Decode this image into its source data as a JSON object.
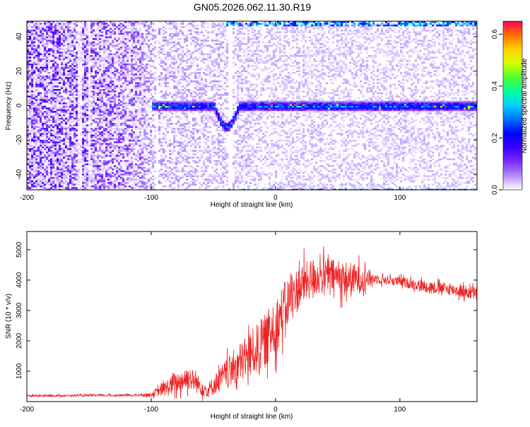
{
  "title": "GN05.2026.062.11.30.R19",
  "chart_data": [
    {
      "type": "heatmap",
      "name": "spectrogram",
      "xlabel": "Height of straight line (km)",
      "ylabel": "Frequency (Hz)",
      "xlim": [
        -200,
        162
      ],
      "ylim": [
        -49,
        49
      ],
      "xticks": [
        -200,
        -100,
        0,
        100
      ],
      "yticks": [
        -40,
        -20,
        0,
        20,
        40
      ],
      "colorbar": {
        "label": "Normalized spectral amplitude",
        "range": [
          0.0,
          0.65
        ],
        "ticks": [
          "0.0",
          "0.2",
          "0.4",
          "0.6"
        ],
        "tick_values": [
          0.0,
          0.2,
          0.4,
          0.6
        ],
        "colormap": [
          "#ffffff",
          "#b48cff",
          "#7b2cff",
          "#3a00ff",
          "#0000ff",
          "#0070ff",
          "#00d0ff",
          "#00ffa0",
          "#50ff30",
          "#d8ff00",
          "#ffd000",
          "#ff7000",
          "#ff0050"
        ]
      },
      "features": [
        {
          "kind": "carrier_line",
          "x_start": -100,
          "x_end": 162,
          "frequency_hz": 0,
          "amplitude": 0.3,
          "peak_amplitude": 0.62
        },
        {
          "kind": "dip_before_reentry",
          "x_start": -50,
          "x_end": -30,
          "frequency_hz": -12
        },
        {
          "kind": "edge_band",
          "frequency_hz": 48,
          "x_start": -40,
          "x_end": 162
        },
        {
          "kind": "edge_band",
          "frequency_hz": -49,
          "x_start": -40,
          "x_end": 162
        }
      ],
      "background_amplitude": {
        "x": [
          -200,
          -150,
          -110,
          -100,
          0,
          162
        ],
        "amplitude": [
          0.08,
          0.07,
          0.05,
          0.03,
          0.02,
          0.02
        ]
      }
    },
    {
      "type": "line",
      "name": "snr",
      "xlabel": "Height of straight line (km)",
      "ylabel": "SNR (10 * v/v)",
      "xlim": [
        -200,
        162
      ],
      "ylim": [
        0,
        5600
      ],
      "xticks": [
        -200,
        -100,
        0,
        100
      ],
      "yticks": [
        1000,
        2000,
        3000,
        4000,
        5000
      ],
      "series": [
        {
          "color": "#ee2222",
          "envelope_x": [
            -200,
            -150,
            -110,
            -100,
            -85,
            -70,
            -55,
            -40,
            -25,
            -10,
            0,
            10,
            20,
            30,
            45,
            60,
            72,
            80,
            100,
            120,
            140,
            162
          ],
          "envelope_mean": [
            190,
            200,
            210,
            230,
            500,
            800,
            350,
            900,
            1400,
            1900,
            2500,
            3300,
            3800,
            4100,
            4150,
            4000,
            4050,
            4050,
            3950,
            3800,
            3700,
            3550
          ],
          "envelope_spread": [
            40,
            40,
            50,
            80,
            400,
            500,
            300,
            600,
            900,
            1100,
            1200,
            1000,
            900,
            800,
            700,
            750,
            500,
            200,
            200,
            250,
            250,
            300
          ]
        }
      ]
    }
  ]
}
